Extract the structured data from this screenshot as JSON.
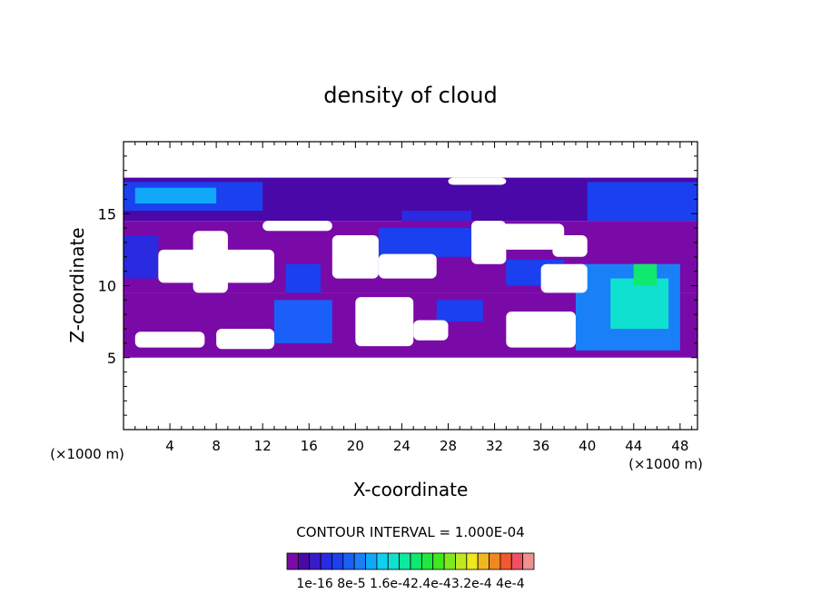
{
  "chart_data": {
    "type": "heatmap",
    "title": "density of cloud",
    "xlabel": "X-coordinate",
    "ylabel": "Z-coordinate",
    "x_unit_label": "(×1000 m)",
    "y_unit_label": "(×1000 m)",
    "xlim": [
      0,
      49.5
    ],
    "ylim": [
      0,
      20
    ],
    "x_ticks": [
      4,
      8,
      12,
      16,
      20,
      24,
      28,
      32,
      36,
      40,
      44,
      48
    ],
    "y_ticks": [
      5,
      10,
      15
    ],
    "contour_interval_text": "CONTOUR INTERVAL = 1.000E-04",
    "colorbar": {
      "levels": 22,
      "label_text": "1e-16 8e-5 1.6e-42.4e-43.2e-4 4e-4",
      "colors": [
        "#7a0aa8",
        "#4a08a8",
        "#3a1ac8",
        "#2a2ae0",
        "#1a40f0",
        "#1a60f8",
        "#1a80f8",
        "#10a8f8",
        "#10d0f0",
        "#10e0d0",
        "#10e8a0",
        "#10e870",
        "#20e840",
        "#40e820",
        "#80e820",
        "#c0e820",
        "#f0e820",
        "#f0b820",
        "#f08820",
        "#f05830",
        "#f05060",
        "#f09090"
      ]
    },
    "cells": [
      {
        "x0": 0,
        "x1": 49.5,
        "z0": 14.5,
        "z1": 17.5,
        "v": 2e-05
      },
      {
        "x0": 0,
        "x1": 12,
        "z0": 15.2,
        "z1": 17.2,
        "v": 9e-05
      },
      {
        "x0": 1,
        "x1": 8,
        "z0": 15.7,
        "z1": 16.8,
        "v": 0.00013
      },
      {
        "x0": 24,
        "x1": 30,
        "z0": 12.5,
        "z1": 15.2,
        "v": 7e-05
      },
      {
        "x0": 40,
        "x1": 49.5,
        "z0": 14.5,
        "z1": 17.2,
        "v": 9e-05
      },
      {
        "x0": 0,
        "x1": 49.5,
        "z0": 9.5,
        "z1": 14.5,
        "v": 1.5e-05
      },
      {
        "x0": 0,
        "x1": 3,
        "z0": 10.5,
        "z1": 13.5,
        "v": 7e-05
      },
      {
        "x0": 14,
        "x1": 17,
        "z0": 9.0,
        "z1": 11.5,
        "v": 9e-05
      },
      {
        "x0": 22,
        "x1": 30,
        "z0": 12.0,
        "z1": 14.0,
        "v": 9e-05
      },
      {
        "x0": 33,
        "x1": 38,
        "z0": 10.0,
        "z1": 11.8,
        "v": 8e-05
      },
      {
        "x0": 0,
        "x1": 49.5,
        "z0": 5.0,
        "z1": 9.5,
        "v": 1.5e-05
      },
      {
        "x0": 13,
        "x1": 18,
        "z0": 6.0,
        "z1": 9.0,
        "v": 0.0001
      },
      {
        "x0": 27,
        "x1": 31,
        "z0": 7.5,
        "z1": 9.0,
        "v": 9e-05
      },
      {
        "x0": 39,
        "x1": 48,
        "z0": 5.5,
        "z1": 11.5,
        "v": 0.00012
      },
      {
        "x0": 42,
        "x1": 47,
        "z0": 7.0,
        "z1": 10.5,
        "v": 0.00018
      },
      {
        "x0": 44,
        "x1": 46,
        "z0": 10.0,
        "z1": 11.5,
        "v": 0.0002
      }
    ]
  }
}
